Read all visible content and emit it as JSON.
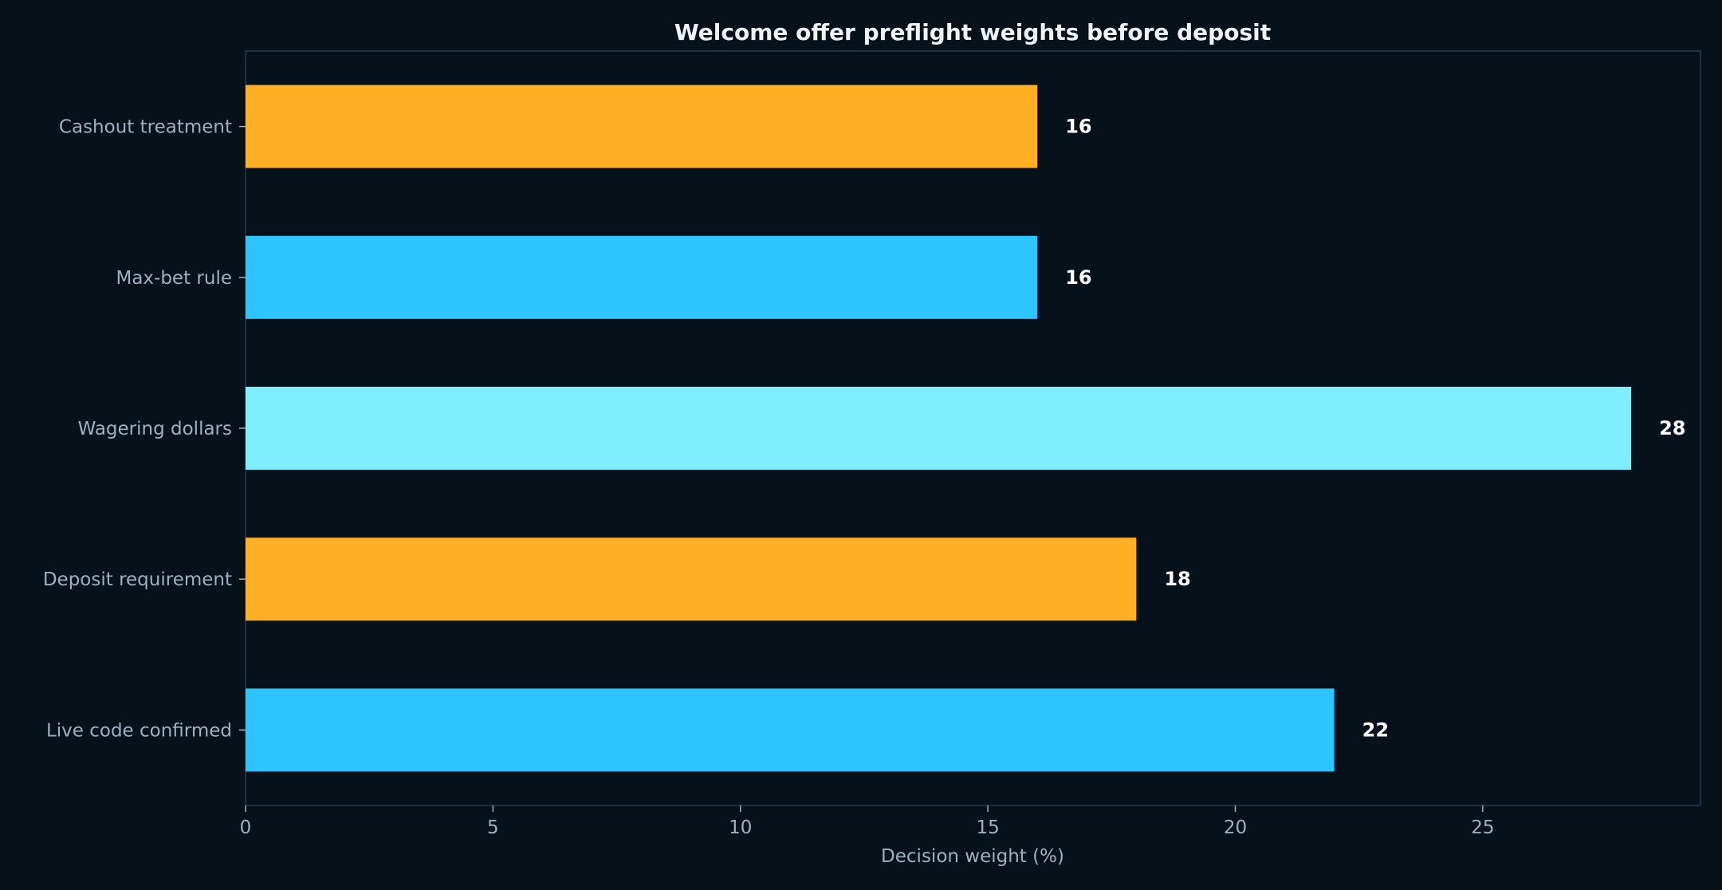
{
  "chart_data": {
    "type": "bar",
    "orientation": "horizontal",
    "title": "Welcome offer preflight weights before deposit",
    "xlabel": "Decision weight (%)",
    "ylabel": "",
    "xlim": [
      0,
      29.4
    ],
    "xticks": [
      0,
      5,
      10,
      15,
      20,
      25
    ],
    "grid": false,
    "legend": false,
    "categories": [
      "Cashout treatment",
      "Max-bet rule",
      "Wagering dollars",
      "Deposit requirement",
      "Live code confirmed"
    ],
    "values": [
      16,
      16,
      28,
      18,
      22
    ],
    "bar_colors": [
      "#ffb024",
      "#2ec4ff",
      "#7eeeff",
      "#ffb024",
      "#2ec4ff"
    ]
  },
  "colors": {
    "background": "#07111a",
    "axes_frame": "#2a3a4a",
    "tick_text": "#9fb0bf",
    "title_text": "#eef3f7",
    "value_text": "#ffffff"
  }
}
